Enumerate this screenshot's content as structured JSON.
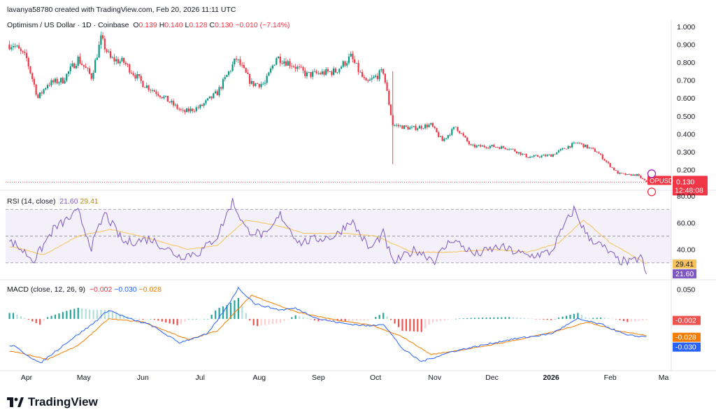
{
  "header": {
    "attribution": "lavanya58780 created with TradingView.com, Feb 20, 2026 11:11 UTC"
  },
  "legend": {
    "symbol": "Optimism / US Dollar · 1D · Coinbase",
    "o_label": "O",
    "o": "0.139",
    "h_label": "H",
    "h": "0.140",
    "l_label": "L",
    "l": "0.128",
    "c_label": "C",
    "c": "0.130",
    "change": "−0.010 (−7.14%)"
  },
  "rsi_legend": {
    "name": "RSI (14, close)",
    "rsi": "21.60",
    "ma": "29.41"
  },
  "macd_legend": {
    "name": "MACD (close, 12, 26, 9)",
    "hist": "−0.002",
    "macd": "−0.030",
    "signal": "−0.028"
  },
  "price_tag": {
    "symbol": "OPUSD",
    "price": "0.130",
    "countdown": "12:48:08"
  },
  "rsi_tags": {
    "ma": "29.41",
    "rsi": "21.60"
  },
  "macd_tags": {
    "hist": "-0.002",
    "signal": "-0.028",
    "macd": "-0.030"
  },
  "footer": {
    "brand": "TradingView"
  },
  "colors": {
    "up": "#089981",
    "down": "#f23645",
    "rsi": "#7e57c2",
    "rsi_ma": "#f7c25c",
    "macd": "#2962ff",
    "signal": "#f57c00",
    "hist_up": "#26a69a",
    "hist_down": "#ef5350"
  },
  "chart_data": [
    {
      "type": "candlestick",
      "title": "Optimism / US Dollar · 1D · Coinbase",
      "x_labels": [
        "Apr",
        "May",
        "Jun",
        "Jul",
        "Aug",
        "Sep",
        "Oct",
        "Nov",
        "Dec",
        "2026",
        "Feb",
        "Ma"
      ],
      "x_label_dates": [
        "2025-04-01",
        "2025-05-01",
        "2025-06-01",
        "2025-07-01",
        "2025-08-01",
        "2025-09-01",
        "2025-10-01",
        "2025-11-01",
        "2025-12-01",
        "2026-01-01",
        "2026-02-01",
        "2026-03-01"
      ],
      "y_ticks": [
        "1.000",
        "0.900",
        "0.800",
        "0.700",
        "0.600",
        "0.500",
        "0.400",
        "0.300",
        "0.200"
      ],
      "ylim": [
        0.1,
        1.0
      ],
      "close_path": [
        [
          "2025-03-25",
          0.9
        ],
        [
          "2025-04-01",
          0.82
        ],
        [
          "2025-04-07",
          0.6
        ],
        [
          "2025-04-12",
          0.68
        ],
        [
          "2025-04-20",
          0.7
        ],
        [
          "2025-04-28",
          0.82
        ],
        [
          "2025-05-05",
          0.72
        ],
        [
          "2025-05-10",
          0.93
        ],
        [
          "2025-05-15",
          0.82
        ],
        [
          "2025-05-22",
          0.8
        ],
        [
          "2025-06-01",
          0.68
        ],
        [
          "2025-06-10",
          0.62
        ],
        [
          "2025-06-22",
          0.52
        ],
        [
          "2025-07-01",
          0.55
        ],
        [
          "2025-07-10",
          0.63
        ],
        [
          "2025-07-20",
          0.82
        ],
        [
          "2025-07-28",
          0.68
        ],
        [
          "2025-08-04",
          0.68
        ],
        [
          "2025-08-10",
          0.83
        ],
        [
          "2025-08-18",
          0.79
        ],
        [
          "2025-08-26",
          0.73
        ],
        [
          "2025-09-03",
          0.74
        ],
        [
          "2025-09-10",
          0.75
        ],
        [
          "2025-09-18",
          0.83
        ],
        [
          "2025-09-26",
          0.68
        ],
        [
          "2025-10-05",
          0.75
        ],
        [
          "2025-10-10",
          0.45
        ],
        [
          "2025-10-20",
          0.43
        ],
        [
          "2025-10-30",
          0.45
        ],
        [
          "2025-11-05",
          0.36
        ],
        [
          "2025-11-12",
          0.44
        ],
        [
          "2025-11-20",
          0.33
        ],
        [
          "2025-12-01",
          0.33
        ],
        [
          "2025-12-10",
          0.32
        ],
        [
          "2025-12-20",
          0.27
        ],
        [
          "2026-01-01",
          0.28
        ],
        [
          "2026-01-10",
          0.33
        ],
        [
          "2026-01-15",
          0.35
        ],
        [
          "2026-01-25",
          0.3
        ],
        [
          "2026-02-01",
          0.22
        ],
        [
          "2026-02-05",
          0.18
        ],
        [
          "2026-02-10",
          0.17
        ],
        [
          "2026-02-15",
          0.17
        ],
        [
          "2026-02-20",
          0.13
        ]
      ]
    },
    {
      "type": "line",
      "title": "RSI (14, close)",
      "ylim": [
        20,
        80
      ],
      "y_ticks": [
        "80.00",
        "60.00",
        "40.00"
      ],
      "band": [
        30,
        70
      ],
      "series": [
        {
          "name": "RSI",
          "values": [
            [
              "2025-03-25",
              45
            ],
            [
              "2025-04-05",
              32
            ],
            [
              "2025-04-15",
              55
            ],
            [
              "2025-04-28",
              68
            ],
            [
              "2025-05-05",
              42
            ],
            [
              "2025-05-12",
              67
            ],
            [
              "2025-05-22",
              45
            ],
            [
              "2025-06-05",
              48
            ],
            [
              "2025-06-20",
              35
            ],
            [
              "2025-07-01",
              38
            ],
            [
              "2025-07-10",
              50
            ],
            [
              "2025-07-18",
              76
            ],
            [
              "2025-07-25",
              55
            ],
            [
              "2025-08-05",
              50
            ],
            [
              "2025-08-12",
              66
            ],
            [
              "2025-08-22",
              45
            ],
            [
              "2025-09-01",
              48
            ],
            [
              "2025-09-10",
              50
            ],
            [
              "2025-09-18",
              62
            ],
            [
              "2025-09-28",
              40
            ],
            [
              "2025-10-05",
              52
            ],
            [
              "2025-10-10",
              30
            ],
            [
              "2025-10-22",
              40
            ],
            [
              "2025-11-01",
              32
            ],
            [
              "2025-11-10",
              48
            ],
            [
              "2025-11-22",
              36
            ],
            [
              "2025-12-05",
              42
            ],
            [
              "2025-12-20",
              35
            ],
            [
              "2026-01-01",
              38
            ],
            [
              "2026-01-08",
              58
            ],
            [
              "2026-01-13",
              70
            ],
            [
              "2026-01-20",
              50
            ],
            [
              "2026-01-28",
              42
            ],
            [
              "2026-02-05",
              32
            ],
            [
              "2026-02-12",
              30
            ],
            [
              "2026-02-17",
              35
            ],
            [
              "2026-02-20",
              21.6
            ]
          ]
        },
        {
          "name": "RSI MA",
          "values": [
            [
              "2025-03-25",
              42
            ],
            [
              "2025-04-10",
              36
            ],
            [
              "2025-04-28",
              50
            ],
            [
              "2025-05-15",
              55
            ],
            [
              "2025-06-05",
              48
            ],
            [
              "2025-06-25",
              40
            ],
            [
              "2025-07-10",
              43
            ],
            [
              "2025-07-25",
              62
            ],
            [
              "2025-08-10",
              58
            ],
            [
              "2025-08-25",
              52
            ],
            [
              "2025-09-15",
              52
            ],
            [
              "2025-10-01",
              50
            ],
            [
              "2025-10-20",
              38
            ],
            [
              "2025-11-10",
              38
            ],
            [
              "2025-12-01",
              40
            ],
            [
              "2025-12-20",
              38
            ],
            [
              "2026-01-05",
              45
            ],
            [
              "2026-01-18",
              62
            ],
            [
              "2026-02-01",
              45
            ],
            [
              "2026-02-20",
              29.41
            ]
          ]
        }
      ]
    },
    {
      "type": "line",
      "title": "MACD (close, 12, 26, 9)",
      "ylim": [
        -0.085,
        0.06
      ],
      "y_ticks": [
        "0.050"
      ],
      "series": [
        {
          "name": "MACD",
          "values": [
            [
              "2025-03-25",
              -0.045
            ],
            [
              "2025-04-08",
              -0.075
            ],
            [
              "2025-04-22",
              -0.04
            ],
            [
              "2025-05-05",
              -0.01
            ],
            [
              "2025-05-14",
              0.015
            ],
            [
              "2025-05-25",
              0.0
            ],
            [
              "2025-06-05",
              -0.01
            ],
            [
              "2025-06-20",
              -0.04
            ],
            [
              "2025-07-05",
              -0.025
            ],
            [
              "2025-07-15",
              0.02
            ],
            [
              "2025-07-21",
              0.052
            ],
            [
              "2025-07-30",
              0.025
            ],
            [
              "2025-08-12",
              0.015
            ],
            [
              "2025-08-20",
              0.018
            ],
            [
              "2025-09-01",
              0.0
            ],
            [
              "2025-09-15",
              -0.008
            ],
            [
              "2025-09-28",
              -0.012
            ],
            [
              "2025-10-05",
              -0.008
            ],
            [
              "2025-10-15",
              -0.05
            ],
            [
              "2025-10-25",
              -0.072
            ],
            [
              "2025-11-10",
              -0.055
            ],
            [
              "2025-11-25",
              -0.045
            ],
            [
              "2025-12-10",
              -0.035
            ],
            [
              "2026-01-01",
              -0.025
            ],
            [
              "2026-01-15",
              0.0
            ],
            [
              "2026-01-28",
              -0.01
            ],
            [
              "2026-02-10",
              -0.028
            ],
            [
              "2026-02-20",
              -0.03
            ]
          ]
        },
        {
          "name": "Signal",
          "values": [
            [
              "2025-03-25",
              -0.055
            ],
            [
              "2025-04-12",
              -0.068
            ],
            [
              "2025-04-28",
              -0.045
            ],
            [
              "2025-05-14",
              0.0
            ],
            [
              "2025-06-01",
              -0.005
            ],
            [
              "2025-06-25",
              -0.035
            ],
            [
              "2025-07-10",
              -0.02
            ],
            [
              "2025-07-28",
              0.04
            ],
            [
              "2025-08-20",
              0.012
            ],
            [
              "2025-09-10",
              -0.002
            ],
            [
              "2025-09-28",
              -0.01
            ],
            [
              "2025-10-15",
              -0.03
            ],
            [
              "2025-10-30",
              -0.06
            ],
            [
              "2025-11-20",
              -0.05
            ],
            [
              "2025-12-15",
              -0.035
            ],
            [
              "2026-01-05",
              -0.02
            ],
            [
              "2026-01-20",
              -0.005
            ],
            [
              "2026-02-05",
              -0.02
            ],
            [
              "2026-02-20",
              -0.028
            ]
          ]
        }
      ]
    }
  ]
}
